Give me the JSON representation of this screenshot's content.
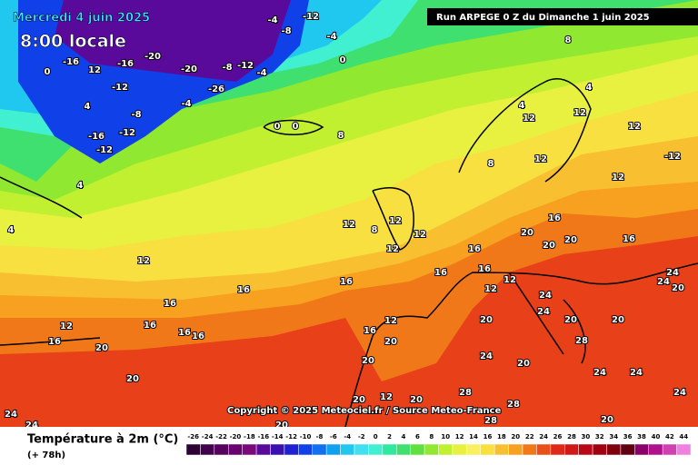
{
  "header": {
    "date": "Mercredi 4 juin 2025",
    "time": "8:00 locale",
    "run": "Run ARPEGE 0 Z du Dimanche 1 juin 2025"
  },
  "copyright": "Copyright © 2025 Meteociel.fr / Source Meteo-France",
  "legend": {
    "title": "Température à 2m (°C)",
    "subtitle": "(+ 78h)",
    "values": [
      -26,
      -24,
      -22,
      -20,
      -18,
      -16,
      -14,
      -12,
      -10,
      -8,
      -6,
      -4,
      -2,
      0,
      2,
      4,
      6,
      8,
      10,
      12,
      14,
      16,
      18,
      20,
      22,
      24,
      26,
      28,
      30,
      32,
      34,
      36,
      38,
      40,
      42,
      44
    ],
    "colors": [
      "#2d0036",
      "#40004a",
      "#55005e",
      "#6a0070",
      "#7a0a7a",
      "#5a0a9a",
      "#3a10b0",
      "#2020d0",
      "#1040e8",
      "#1070f0",
      "#10a0f0",
      "#20c8f0",
      "#40e0f0",
      "#40f0d0",
      "#30e8a0",
      "#40e070",
      "#60e040",
      "#90e830",
      "#c0f030",
      "#e8f040",
      "#f8f060",
      "#f8e040",
      "#f8c030",
      "#f8a020",
      "#f07818",
      "#e85018",
      "#e02818",
      "#d01818",
      "#b80818",
      "#a00010",
      "#800010",
      "#600010",
      "#880068",
      "#b0108c",
      "#d040b0",
      "#f080e0"
    ]
  },
  "map_labels": [
    -4,
    -8,
    -12,
    -4,
    -20,
    -20,
    -16,
    12,
    -16,
    -12,
    -8,
    -12,
    -16,
    -12,
    -26,
    -4,
    0,
    -8,
    -12,
    -4,
    0,
    4,
    8,
    0,
    0,
    4,
    12,
    12,
    8,
    4,
    8,
    12,
    12,
    -12,
    12,
    4,
    4,
    12,
    8,
    12,
    12,
    12,
    16,
    16,
    16,
    20,
    20,
    20,
    16,
    16,
    24,
    24,
    20,
    12,
    16,
    16,
    16,
    16,
    16,
    16,
    16,
    12,
    20,
    20,
    12,
    16,
    20,
    20,
    24,
    20,
    24,
    20,
    20,
    24,
    24,
    28,
    28,
    28,
    20,
    20,
    24,
    24,
    20,
    12,
    20,
    24,
    12,
    12,
    20,
    24,
    28
  ]
}
